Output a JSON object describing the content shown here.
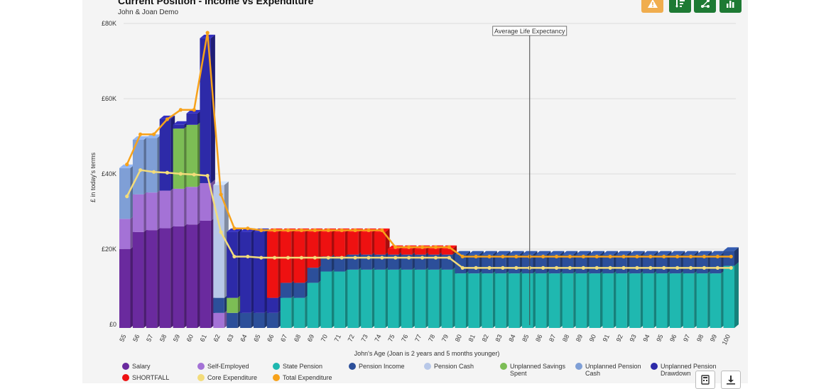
{
  "header": {
    "title": "Current Position - Income vs Expenditure",
    "subtitle": "John & Joan Demo"
  },
  "toolbar": {
    "buttons": [
      {
        "icon": "warning-icon"
      },
      {
        "icon": "sort-list-icon"
      },
      {
        "icon": "network-icon"
      },
      {
        "icon": "bar-chart-icon"
      }
    ]
  },
  "colors": {
    "Salary": "#6a2a9e",
    "Self-Employed": "#a472d6",
    "State Pension": "#1fb8b0",
    "Pension Income": "#2c4f9a",
    "Pension Cash": "#b8c8e8",
    "Unplanned Savings Spent": "#7cbd55",
    "Unplanned Pension Cash": "#7f9fd6",
    "Unplanned Pension Drawdown": "#2d2aa8",
    "SHORTFALL": "#ee1111",
    "Core Expenditure": "#f3dc7a",
    "Total Expenditure": "#f7a21b"
  },
  "chart_data": {
    "type": "bar",
    "stacked": true,
    "xlabel": "John's Age (Joan is 2 years and 5 months younger)",
    "ylabel": "£ in today's terms",
    "ylim": [
      0,
      80000
    ],
    "yticks": [
      "£0",
      "£20K",
      "£40K",
      "£60K",
      "£80K"
    ],
    "grid": true,
    "annotation": {
      "label": "Average Life Expectancy",
      "x": 85
    },
    "categories": [
      55,
      56,
      57,
      58,
      59,
      60,
      61,
      62,
      63,
      64,
      65,
      66,
      67,
      68,
      69,
      70,
      71,
      72,
      73,
      74,
      75,
      76,
      77,
      78,
      79,
      80,
      81,
      82,
      83,
      84,
      85,
      86,
      87,
      88,
      89,
      90,
      91,
      92,
      93,
      94,
      95,
      96,
      97,
      98,
      99,
      100
    ],
    "series": [
      {
        "name": "Salary",
        "values": [
          21000,
          25500,
          26000,
          26500,
          27000,
          27500,
          28500,
          0,
          0,
          0,
          0,
          0,
          0,
          0,
          0,
          0,
          0,
          0,
          0,
          0,
          0,
          0,
          0,
          0,
          0,
          0,
          0,
          0,
          0,
          0,
          0,
          0,
          0,
          0,
          0,
          0,
          0,
          0,
          0,
          0,
          0,
          0,
          0,
          0,
          0,
          0
        ]
      },
      {
        "name": "Self-Employed",
        "values": [
          8000,
          10000,
          10000,
          10000,
          10000,
          10000,
          10000,
          4000,
          0,
          0,
          0,
          0,
          0,
          0,
          0,
          0,
          0,
          0,
          0,
          0,
          0,
          0,
          0,
          0,
          0,
          0,
          0,
          0,
          0,
          0,
          0,
          0,
          0,
          0,
          0,
          0,
          0,
          0,
          0,
          0,
          0,
          0,
          0,
          0,
          0,
          0
        ]
      },
      {
        "name": "State Pension",
        "values": [
          0,
          0,
          0,
          0,
          0,
          0,
          0,
          0,
          0,
          0,
          0,
          0,
          8000,
          8000,
          12000,
          15000,
          15000,
          15500,
          15500,
          15500,
          15500,
          15500,
          15500,
          15500,
          15500,
          14500,
          14500,
          14500,
          14500,
          14500,
          14500,
          14500,
          14500,
          14500,
          14500,
          14500,
          14500,
          14500,
          14500,
          14500,
          14500,
          14500,
          14500,
          14500,
          14500,
          16500
        ]
      },
      {
        "name": "Pension Income",
        "values": [
          0,
          0,
          0,
          0,
          0,
          0,
          0,
          4000,
          4000,
          4000,
          4000,
          4000,
          4000,
          4000,
          4000,
          4000,
          4000,
          4000,
          4000,
          4000,
          4000,
          4000,
          4000,
          4000,
          4000,
          5000,
          5000,
          5000,
          5000,
          5000,
          5000,
          5000,
          5000,
          5000,
          5000,
          5000,
          5000,
          5000,
          5000,
          5000,
          5000,
          5000,
          5000,
          5000,
          5000,
          4000
        ]
      },
      {
        "name": "Pension Cash",
        "values": [
          0,
          0,
          0,
          0,
          0,
          0,
          0,
          30000,
          0,
          0,
          0,
          0,
          0,
          0,
          0,
          0,
          0,
          0,
          0,
          0,
          0,
          0,
          0,
          0,
          0,
          0,
          0,
          0,
          0,
          0,
          0,
          0,
          0,
          0,
          0,
          0,
          0,
          0,
          0,
          0,
          0,
          0,
          0,
          0,
          0,
          0
        ]
      },
      {
        "name": "Unplanned Savings Spent",
        "values": [
          0,
          0,
          0,
          0,
          16000,
          16500,
          0,
          0,
          4000,
          0,
          0,
          0,
          0,
          0,
          0,
          0,
          0,
          0,
          0,
          0,
          0,
          0,
          0,
          0,
          0,
          0,
          0,
          0,
          0,
          0,
          0,
          0,
          0,
          0,
          0,
          0,
          0,
          0,
          0,
          0,
          0,
          0,
          0,
          0,
          0,
          0
        ]
      },
      {
        "name": "Unplanned Pension Cash",
        "values": [
          13500,
          14500,
          14500,
          0,
          0,
          0,
          0,
          0,
          0,
          0,
          0,
          0,
          0,
          0,
          0,
          0,
          0,
          0,
          0,
          0,
          0,
          0,
          0,
          0,
          0,
          0,
          0,
          0,
          0,
          0,
          0,
          0,
          0,
          0,
          0,
          0,
          0,
          0,
          0,
          0,
          0,
          0,
          0,
          0,
          0,
          0
        ]
      },
      {
        "name": "Unplanned Pension Drawdown",
        "values": [
          0,
          0,
          0,
          19000,
          1000,
          3000,
          38500,
          0,
          17500,
          21500,
          21500,
          4000,
          0,
          0,
          0,
          0,
          0,
          0,
          0,
          0,
          0,
          0,
          0,
          0,
          0,
          0,
          0,
          0,
          0,
          0,
          0,
          0,
          0,
          0,
          0,
          0,
          0,
          0,
          0,
          0,
          0,
          0,
          0,
          0,
          0,
          0
        ]
      },
      {
        "name": "SHORTFALL",
        "values": [
          0,
          0,
          0,
          0,
          0,
          0,
          0,
          0,
          0,
          0,
          0,
          17500,
          13500,
          13500,
          9500,
          6500,
          6500,
          6000,
          6000,
          6000,
          1500,
          1500,
          1500,
          1500,
          1500,
          0,
          0,
          0,
          0,
          0,
          0,
          0,
          0,
          0,
          0,
          0,
          0,
          0,
          0,
          0,
          0,
          0,
          0,
          0,
          0,
          0
        ]
      }
    ],
    "lines": [
      {
        "name": "Core Expenditure",
        "values": [
          34500,
          41500,
          41000,
          40800,
          40500,
          40300,
          40000,
          25000,
          18500,
          18500,
          18200,
          18200,
          18200,
          18200,
          18200,
          18200,
          18200,
          18200,
          18200,
          18200,
          18200,
          18200,
          18200,
          18200,
          18200,
          15500,
          15500,
          15500,
          15500,
          15500,
          15500,
          15500,
          15500,
          15500,
          15500,
          15500,
          15500,
          15500,
          15500,
          15500,
          15500,
          15500,
          15500,
          15500,
          15500,
          15500
        ]
      },
      {
        "name": "Total Expenditure",
        "values": [
          43000,
          51000,
          51000,
          55000,
          57500,
          57500,
          78000,
          35000,
          26000,
          26000,
          25500,
          25500,
          25500,
          25500,
          25500,
          25500,
          25500,
          25500,
          25500,
          25500,
          21000,
          21000,
          21000,
          21000,
          21000,
          18500,
          18500,
          18500,
          18500,
          18500,
          18500,
          18500,
          18500,
          18500,
          18500,
          18500,
          18500,
          18500,
          18500,
          18500,
          18500,
          18500,
          18500,
          18500,
          18500,
          18500
        ]
      }
    ]
  },
  "legend": [
    {
      "name": "Salary",
      "label": "Salary"
    },
    {
      "name": "Self-Employed",
      "label": "Self-Employed"
    },
    {
      "name": "State Pension",
      "label": "State Pension"
    },
    {
      "name": "Pension Income",
      "label": "Pension Income"
    },
    {
      "name": "Pension Cash",
      "label": "Pension Cash"
    },
    {
      "name": "Unplanned Savings Spent",
      "label": "Unplanned Savings Spent"
    },
    {
      "name": "Unplanned Pension Cash",
      "label": "Unplanned Pension Cash"
    },
    {
      "name": "Unplanned Pension Drawdown",
      "label": "Unplanned Pension Drawdown"
    },
    {
      "name": "SHORTFALL",
      "label": "SHORTFALL"
    },
    {
      "name": "Core Expenditure",
      "label": "Core Expenditure"
    },
    {
      "name": "Total Expenditure",
      "label": "Total Expenditure"
    }
  ],
  "footer_buttons": [
    {
      "icon": "calculator-icon"
    },
    {
      "icon": "download-icon"
    }
  ]
}
